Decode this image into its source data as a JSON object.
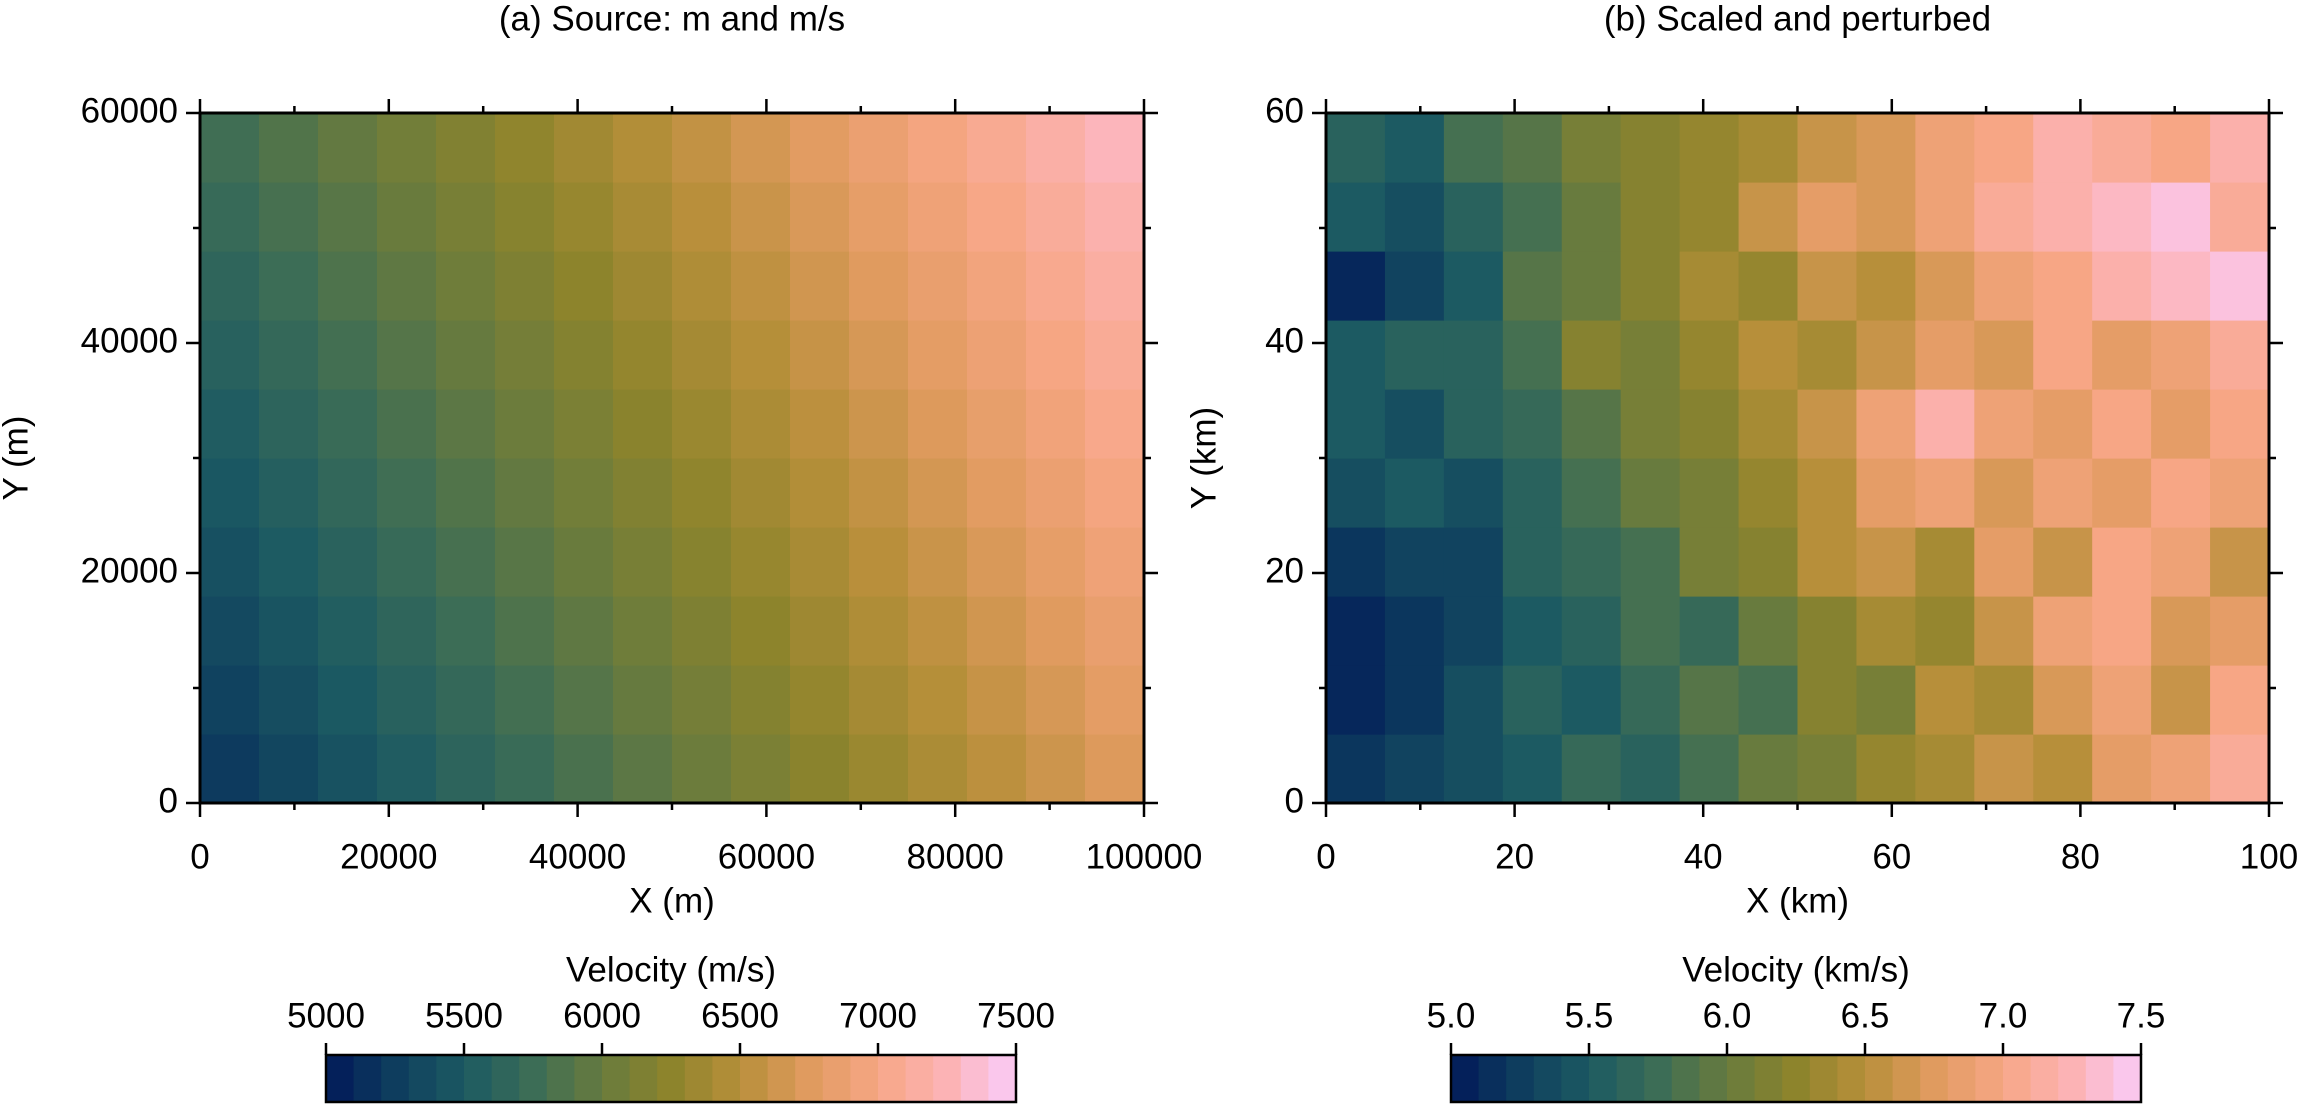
{
  "chart_data": [
    {
      "type": "heatmap",
      "title": "(a) Source: m and m/s",
      "xlabel": "X (m)",
      "ylabel": "Y (m)",
      "x": [
        3125,
        9375,
        15625,
        21875,
        28125,
        34375,
        40625,
        46875,
        53125,
        59375,
        65625,
        71875,
        78125,
        84375,
        90625,
        96875
      ],
      "y": [
        3000,
        9000,
        15000,
        21000,
        27000,
        33000,
        39000,
        45000,
        51000,
        57000
      ],
      "z": [
        [
          5230,
          5330,
          5430,
          5530,
          5630,
          5730,
          5830,
          5930,
          6030,
          6130,
          6230,
          6330,
          6430,
          6530,
          6630,
          6730
        ],
        [
          5290,
          5390,
          5490,
          5590,
          5690,
          5790,
          5890,
          5990,
          6090,
          6190,
          6290,
          6390,
          6490,
          6590,
          6690,
          6790
        ],
        [
          5350,
          5450,
          5550,
          5650,
          5750,
          5850,
          5950,
          6050,
          6150,
          6250,
          6350,
          6450,
          6550,
          6650,
          6750,
          6850
        ],
        [
          5410,
          5510,
          5610,
          5710,
          5810,
          5910,
          6010,
          6110,
          6210,
          6310,
          6410,
          6510,
          6610,
          6710,
          6810,
          6910
        ],
        [
          5470,
          5570,
          5670,
          5770,
          5870,
          5970,
          6070,
          6170,
          6270,
          6370,
          6470,
          6570,
          6670,
          6770,
          6870,
          6970
        ],
        [
          5530,
          5630,
          5730,
          5830,
          5930,
          6030,
          6130,
          6230,
          6330,
          6430,
          6530,
          6630,
          6730,
          6830,
          6930,
          7030
        ],
        [
          5590,
          5690,
          5790,
          5890,
          5990,
          6090,
          6190,
          6290,
          6390,
          6490,
          6590,
          6690,
          6790,
          6890,
          6990,
          7090
        ],
        [
          5650,
          5750,
          5850,
          5950,
          6050,
          6150,
          6250,
          6350,
          6450,
          6550,
          6650,
          6750,
          6850,
          6950,
          7050,
          7150
        ],
        [
          5710,
          5810,
          5910,
          6010,
          6110,
          6210,
          6310,
          6410,
          6510,
          6610,
          6710,
          6810,
          6910,
          7010,
          7110,
          7210
        ],
        [
          5770,
          5870,
          5970,
          6070,
          6170,
          6270,
          6370,
          6470,
          6570,
          6670,
          6770,
          6870,
          6970,
          7070,
          7170,
          7270
        ]
      ],
      "xlim": [
        0,
        100000
      ],
      "ylim": [
        0,
        60000
      ],
      "xticks": [
        0,
        20000,
        40000,
        60000,
        80000,
        100000
      ],
      "yticks": [
        0,
        20000,
        40000,
        60000
      ],
      "xminor": [
        10000,
        30000,
        50000,
        70000,
        90000
      ],
      "yminor": [
        10000,
        30000,
        50000
      ],
      "colorbar": {
        "label": "Velocity (m/s)",
        "clim": [
          5000,
          7500
        ],
        "step": 100,
        "ticks": [
          5000,
          5500,
          6000,
          6500,
          7000,
          7500
        ]
      },
      "colormap": [
        "#011959",
        "#0e3d5e",
        "#1c5a62",
        "#3c6d56",
        "#687b3e",
        "#8d842c",
        "#b78f3a",
        "#e09b5f",
        "#f7a685",
        "#fcb3b5",
        "#faccfa"
      ]
    },
    {
      "type": "heatmap",
      "title": "(b) Scaled and perturbed",
      "xlabel": "X (km)",
      "ylabel": "Y (km)",
      "x": [
        3.125,
        9.375,
        15.625,
        21.875,
        28.125,
        34.375,
        40.625,
        46.875,
        53.125,
        59.375,
        65.625,
        71.875,
        78.125,
        84.375,
        90.625,
        96.875
      ],
      "y": [
        3,
        9,
        15,
        21,
        27,
        33,
        39,
        45,
        51,
        57
      ],
      "z": [
        [
          5.2,
          5.3,
          5.4,
          5.5,
          5.7,
          5.6,
          5.8,
          6.0,
          6.1,
          6.3,
          6.4,
          6.6,
          6.5,
          6.8,
          6.9,
          7.1
        ],
        [
          5.1,
          5.2,
          5.4,
          5.6,
          5.5,
          5.7,
          5.9,
          5.8,
          6.2,
          6.1,
          6.5,
          6.4,
          6.7,
          6.9,
          6.6,
          7.0
        ],
        [
          5.1,
          5.2,
          5.3,
          5.5,
          5.6,
          5.8,
          5.7,
          6.0,
          6.2,
          6.4,
          6.3,
          6.6,
          6.9,
          7.0,
          6.7,
          6.8
        ],
        [
          5.2,
          5.3,
          5.3,
          5.6,
          5.7,
          5.8,
          6.1,
          6.2,
          6.5,
          6.6,
          6.4,
          6.8,
          6.6,
          7.0,
          6.9,
          6.6
        ],
        [
          5.4,
          5.5,
          5.4,
          5.6,
          5.8,
          6.0,
          6.1,
          6.3,
          6.5,
          6.8,
          6.9,
          6.7,
          6.9,
          6.8,
          7.0,
          6.9
        ],
        [
          5.5,
          5.4,
          5.6,
          5.7,
          5.9,
          6.1,
          6.2,
          6.4,
          6.6,
          6.9,
          7.2,
          6.9,
          6.8,
          7.0,
          6.8,
          7.0
        ],
        [
          5.5,
          5.6,
          5.6,
          5.8,
          6.2,
          6.1,
          6.3,
          6.5,
          6.4,
          6.6,
          6.8,
          6.7,
          7.0,
          6.8,
          6.9,
          7.1
        ],
        [
          5.1,
          5.3,
          5.5,
          5.9,
          6.0,
          6.2,
          6.4,
          6.3,
          6.6,
          6.5,
          6.7,
          6.9,
          7.0,
          7.2,
          7.3,
          7.4
        ],
        [
          5.5,
          5.4,
          5.6,
          5.8,
          6.0,
          6.2,
          6.3,
          6.6,
          6.8,
          6.7,
          6.9,
          7.1,
          7.2,
          7.3,
          7.4,
          7.1
        ],
        [
          5.6,
          5.5,
          5.8,
          5.9,
          6.1,
          6.2,
          6.3,
          6.4,
          6.6,
          6.7,
          6.9,
          7.0,
          7.2,
          7.1,
          7.0,
          7.2
        ]
      ],
      "xlim": [
        0,
        100
      ],
      "ylim": [
        0,
        60
      ],
      "xticks": [
        0,
        20,
        40,
        60,
        80,
        100
      ],
      "yticks": [
        0,
        20,
        40,
        60
      ],
      "xminor": [
        10,
        30,
        50,
        70,
        90
      ],
      "yminor": [
        10,
        30,
        50
      ],
      "colorbar": {
        "label": "Velocity (km/s)",
        "clim": [
          5,
          7.5
        ],
        "step": 0.1,
        "ticks": [
          {
            "value": 5,
            "label": "5.0"
          },
          5.5,
          {
            "value": 6,
            "label": "6.0"
          },
          6.5,
          {
            "value": 7,
            "label": "7.0"
          },
          7.5
        ]
      },
      "colormap": [
        "#011959",
        "#0e3d5e",
        "#1c5a62",
        "#3c6d56",
        "#687b3e",
        "#8d842c",
        "#b78f3a",
        "#e09b5f",
        "#f7a685",
        "#fcb3b5",
        "#faccfa"
      ]
    }
  ]
}
